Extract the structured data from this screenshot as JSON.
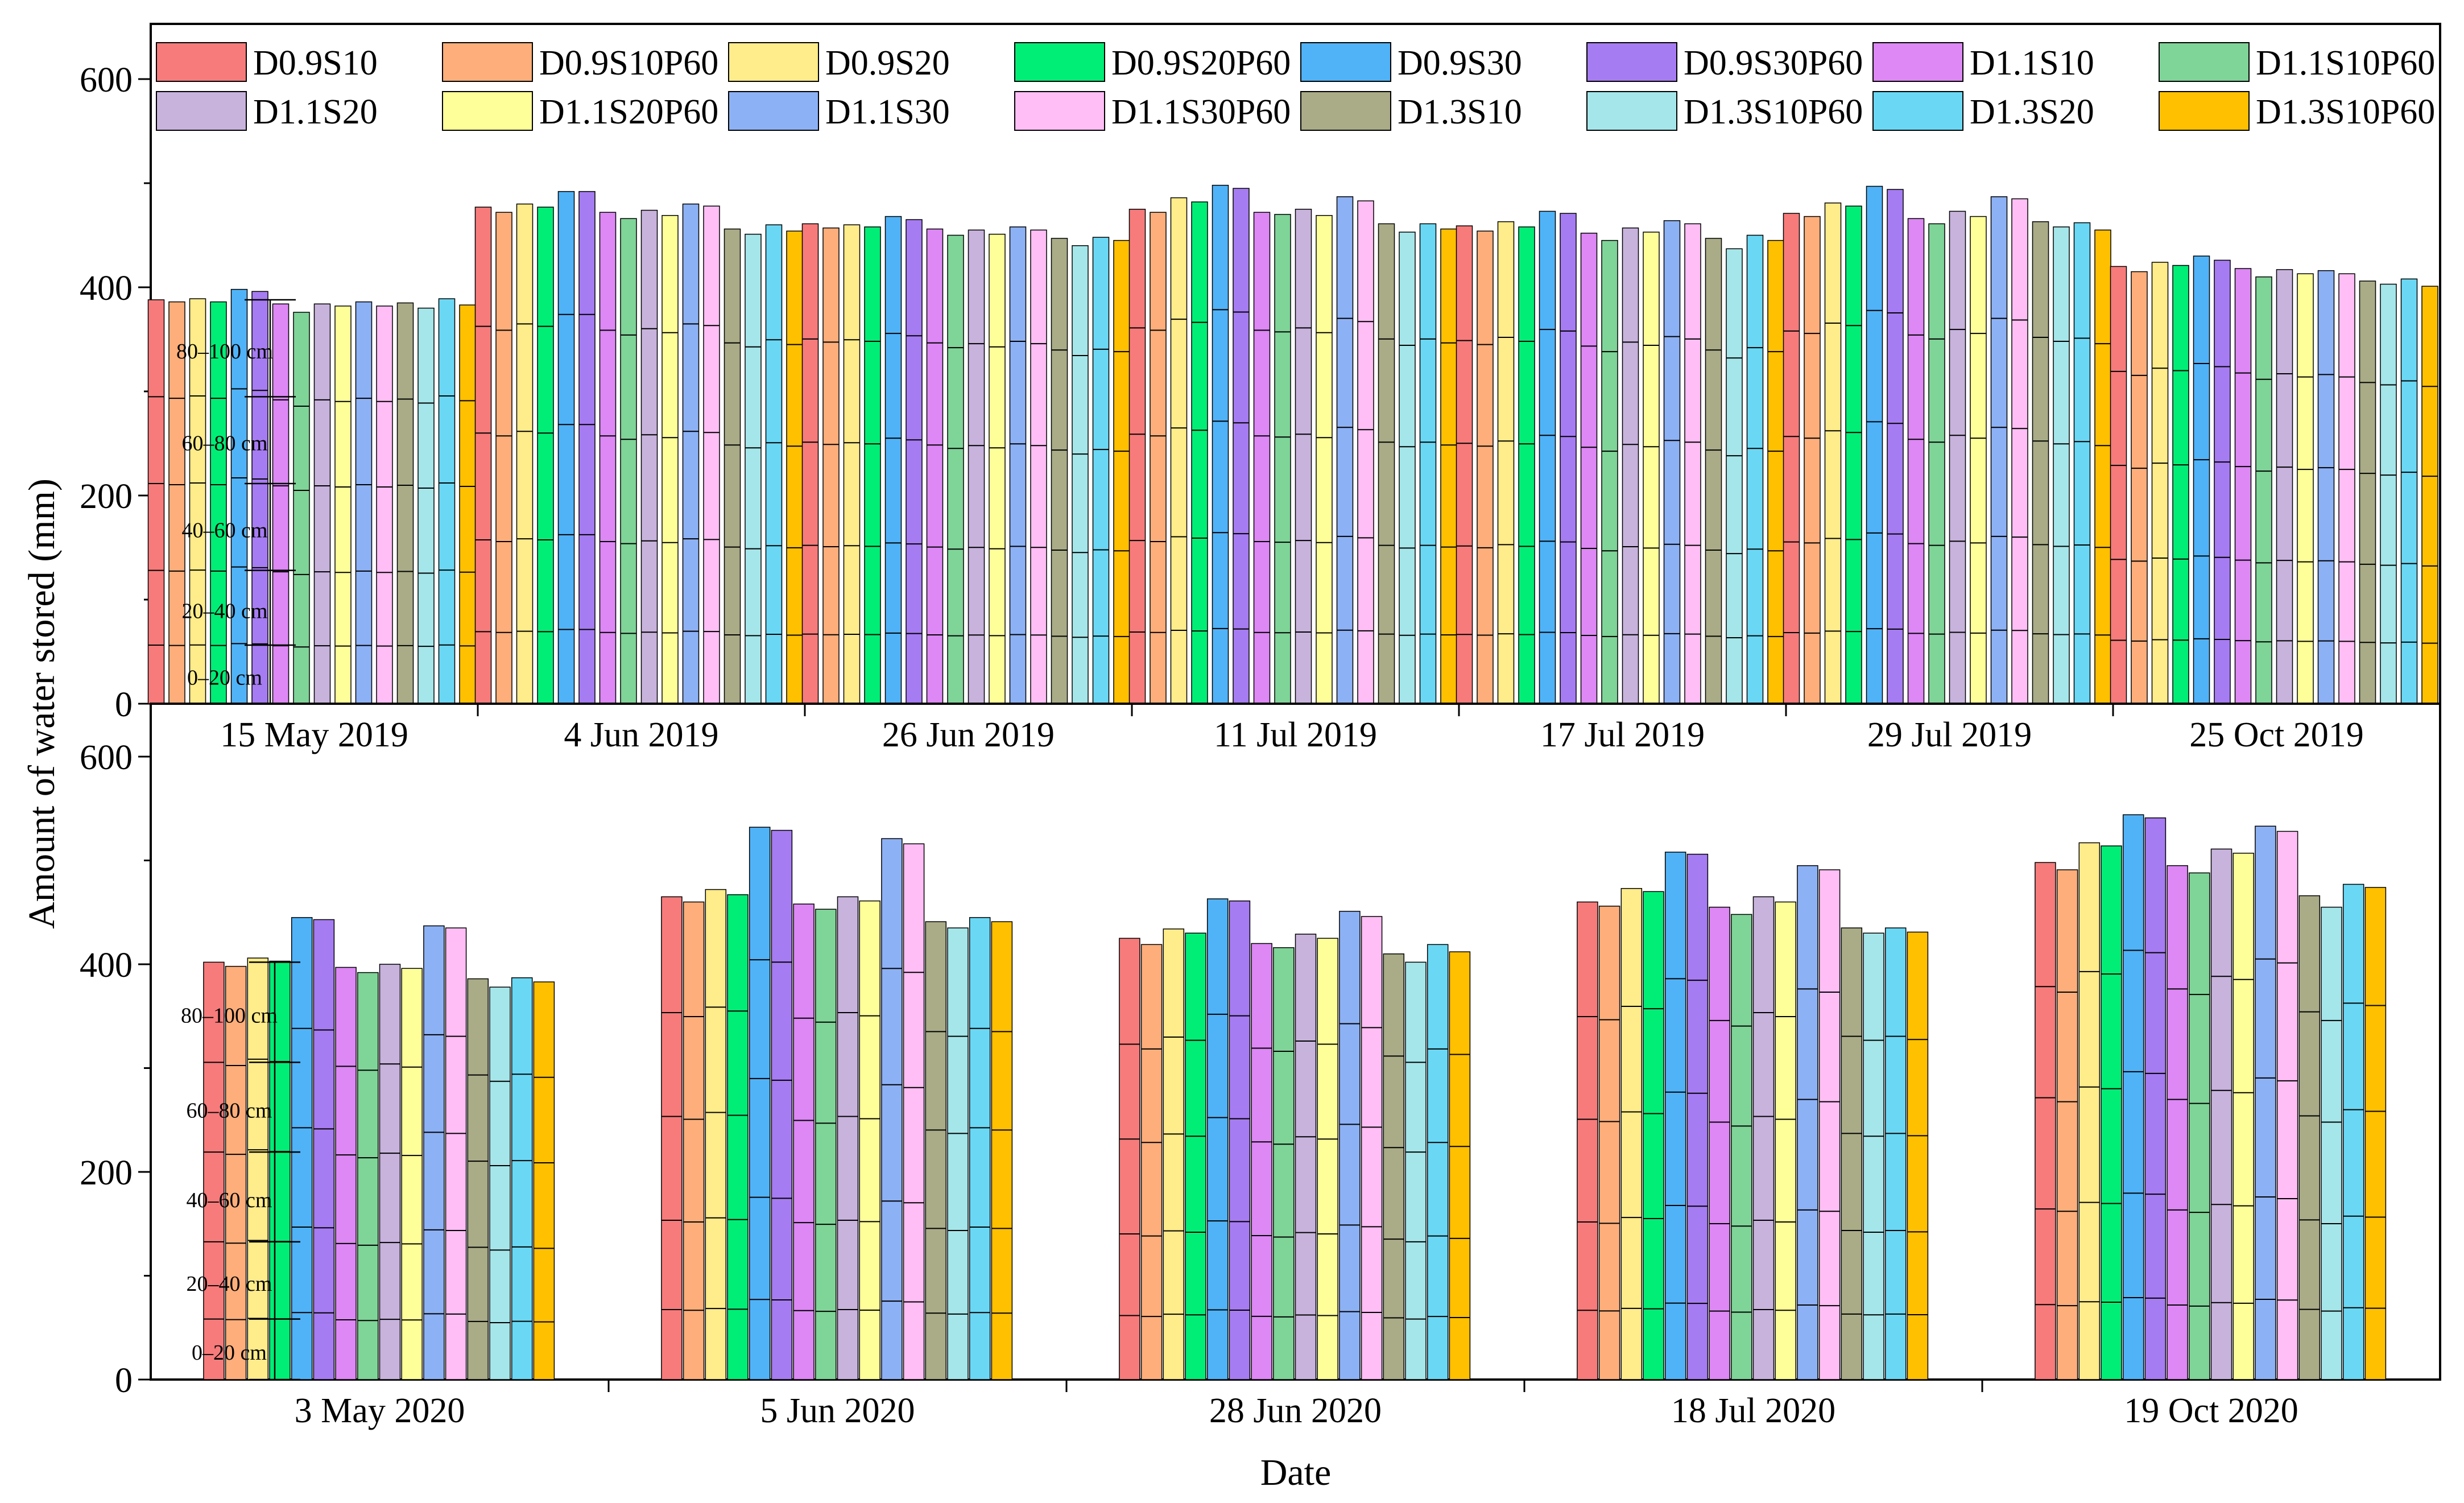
{
  "y_axis_label": "Amount of water stored (mm)",
  "x_axis_label": "Date",
  "legend": [
    {
      "name": "D0.9S10",
      "color": "#F77B7B"
    },
    {
      "name": "D0.9S10P60",
      "color": "#FDAE7A"
    },
    {
      "name": "D0.9S20",
      "color": "#FFEC8A"
    },
    {
      "name": "D0.9S20P60",
      "color": "#00EE76"
    },
    {
      "name": "D0.9S30",
      "color": "#50B3F8"
    },
    {
      "name": "D0.9S30P60",
      "color": "#A67CF2"
    },
    {
      "name": "D1.1S10",
      "color": "#DD88F5"
    },
    {
      "name": "D1.1S10P60",
      "color": "#7FD498"
    },
    {
      "name": "D1.1S20",
      "color": "#C8B3DD"
    },
    {
      "name": "D1.1S20P60",
      "color": "#FFFF99"
    },
    {
      "name": "D1.1S30",
      "color": "#8DB1F5"
    },
    {
      "name": "D1.1S30P60",
      "color": "#FFBEF5"
    },
    {
      "name": "D1.3S10",
      "color": "#A9AC87"
    },
    {
      "name": "D1.3S10P60",
      "color": "#A5E6EA"
    },
    {
      "name": "D1.3S20",
      "color": "#6AD8F4"
    },
    {
      "name": "D1.3S10P60",
      "color": "#FFC000"
    }
  ],
  "chart_data": [
    {
      "type": "bar",
      "stacked": true,
      "panel": "2019",
      "ylim": [
        0,
        640
      ],
      "y_ticks": [
        0,
        200,
        400,
        600
      ],
      "layer_labels": [
        "0–20 cm",
        "20–40 cm",
        "40–60 cm",
        "60–80 cm",
        "80–100 cm"
      ],
      "layer_label_tops": [
        53,
        133,
        216,
        302,
        390
      ],
      "categories": [
        "15 May 2019",
        "4 Jun 2019",
        "26 Jun 2019",
        "11 Jul 2019",
        "17 Jul 2019",
        "29 Jul 2019",
        "25 Oct 2019"
      ],
      "totals": [
        [
          388,
          386,
          389,
          386,
          398,
          396,
          384,
          376,
          384,
          382,
          386,
          382,
          385,
          380,
          389,
          383
        ],
        [
          477,
          472,
          480,
          477,
          492,
          492,
          472,
          466,
          474,
          469,
          480,
          478,
          456,
          451,
          460,
          454
        ],
        [
          461,
          457,
          460,
          458,
          468,
          465,
          456,
          450,
          455,
          451,
          458,
          455,
          447,
          440,
          448,
          445
        ],
        [
          475,
          472,
          486,
          482,
          498,
          495,
          472,
          470,
          475,
          469,
          487,
          483,
          461,
          453,
          461,
          456
        ],
        [
          459,
          454,
          463,
          458,
          473,
          471,
          452,
          445,
          457,
          453,
          464,
          461,
          447,
          437,
          450,
          445
        ],
        [
          471,
          468,
          481,
          478,
          497,
          494,
          466,
          461,
          473,
          468,
          487,
          485,
          463,
          458,
          462,
          455
        ],
        [
          420,
          415,
          424,
          421,
          430,
          426,
          418,
          410,
          417,
          413,
          416,
          413,
          406,
          403,
          408,
          401
        ]
      ]
    },
    {
      "type": "bar",
      "stacked": true,
      "panel": "2020",
      "ylim": [
        0,
        600
      ],
      "y_ticks": [
        0,
        200,
        400,
        600
      ],
      "layer_labels": [
        "0–20 cm",
        "20–40 cm",
        "40–60 cm",
        "60–80 cm",
        "80–100 cm"
      ],
      "layer_label_tops": [
        72,
        148,
        224,
        310,
        400
      ],
      "categories": [
        "3 May 2020",
        "5 Jun 2020",
        "28 Jun 2020",
        "18 Jul 2020",
        "19 Oct 2020"
      ],
      "totals": [
        [
          402,
          398,
          406,
          403,
          445,
          443,
          397,
          392,
          400,
          396,
          437,
          435,
          386,
          378,
          387,
          383
        ],
        [
          465,
          460,
          472,
          467,
          532,
          529,
          458,
          453,
          465,
          461,
          521,
          516,
          441,
          435,
          445,
          441
        ],
        [
          425,
          419,
          434,
          430,
          463,
          461,
          420,
          416,
          429,
          425,
          451,
          446,
          410,
          402,
          419,
          412
        ],
        [
          460,
          456,
          473,
          470,
          508,
          506,
          455,
          448,
          465,
          460,
          495,
          491,
          435,
          430,
          435,
          431
        ],
        [
          498,
          491,
          517,
          514,
          544,
          541,
          495,
          488,
          511,
          507,
          533,
          528,
          466,
          455,
          477,
          474
        ]
      ]
    }
  ]
}
